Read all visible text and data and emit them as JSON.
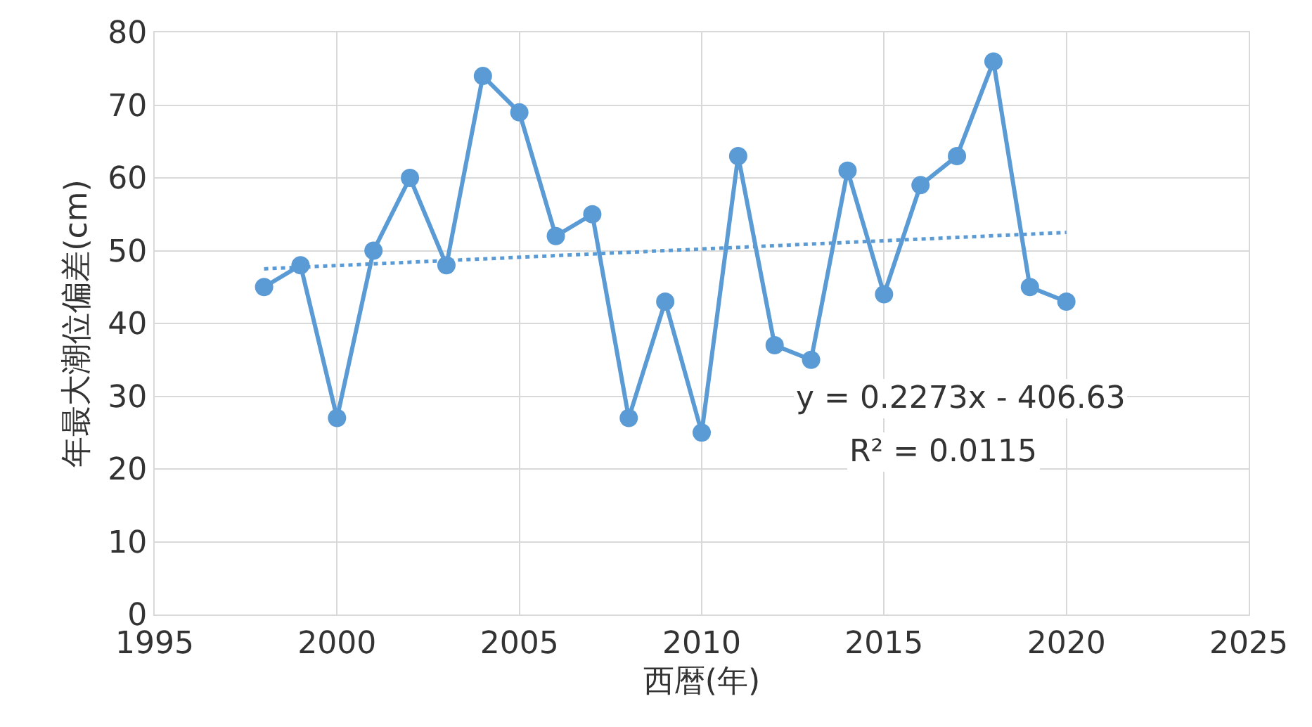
{
  "chart_data": {
    "type": "line",
    "xlabel": "西暦(年)",
    "ylabel": "年最大潮位偏差(cm)",
    "x": [
      1998,
      1999,
      2000,
      2001,
      2002,
      2003,
      2004,
      2005,
      2006,
      2007,
      2008,
      2009,
      2010,
      2011,
      2012,
      2013,
      2014,
      2015,
      2016,
      2017,
      2018,
      2019,
      2020
    ],
    "series": [
      {
        "color": "#5b9bd5",
        "values": [
          45,
          48,
          27,
          50,
          60,
          48,
          74,
          69,
          52,
          55,
          27,
          43,
          25,
          63,
          37,
          35,
          61,
          44,
          59,
          63,
          76,
          45,
          43
        ],
        "marker": "circle",
        "line_style": "solid"
      },
      {
        "type": "line",
        "color": "#5b9bd5",
        "x": [
          1998,
          2020
        ],
        "values": [
          47.5,
          52.5
        ],
        "marker": "none",
        "line_style": "dotted"
      }
    ],
    "annotations": [
      "y = 0.2273x - 406.63",
      "R² = 0.0115"
    ],
    "xlim": [
      1995,
      2025
    ],
    "xticks": [
      1995,
      2000,
      2005,
      2010,
      2015,
      2020,
      2025
    ],
    "ylim": [
      0,
      80
    ],
    "yticks": [
      0,
      10,
      20,
      30,
      40,
      50,
      60,
      70,
      80
    ],
    "grid": true
  }
}
